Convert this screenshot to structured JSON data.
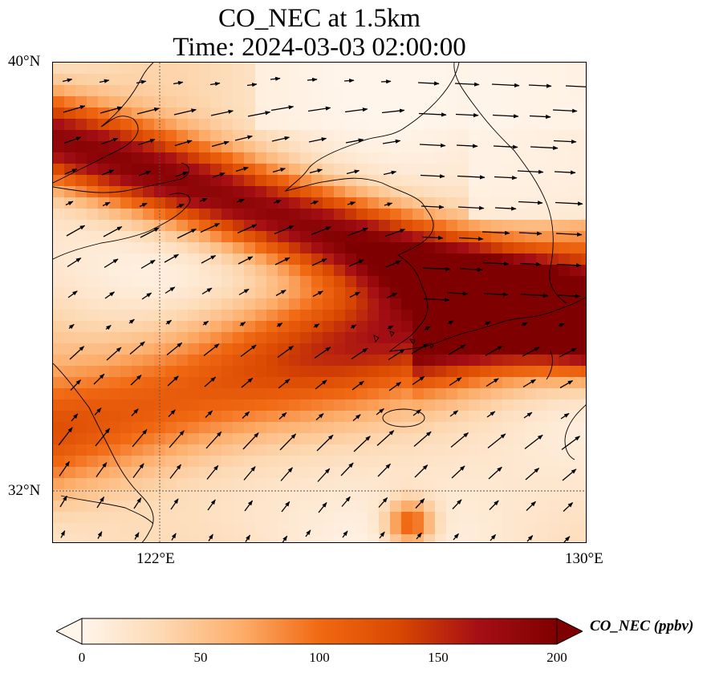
{
  "title": {
    "line1": "CO_NEC at 1.5km",
    "line2": "Time: 2024-03-03 02:00:00"
  },
  "axes": {
    "lat_labels": [
      "40°N",
      "32°N"
    ],
    "lon_labels": [
      "122°E",
      "130°E"
    ],
    "gridlines": "dotted"
  },
  "colorbar": {
    "label": "CO_NEC (ppbv)",
    "ticks": [
      "0",
      "50",
      "100",
      "150",
      "200"
    ],
    "colormap": [
      "#fff5eb",
      "#fdd9b3",
      "#fdae6b",
      "#f16913",
      "#d94801",
      "#a50f15",
      "#7f0000"
    ],
    "extend": "both"
  },
  "map": {
    "lat_range": [
      31,
      40
    ],
    "lon_range": [
      120,
      130
    ],
    "features": [
      "coastlines",
      "wind-vectors"
    ]
  }
}
